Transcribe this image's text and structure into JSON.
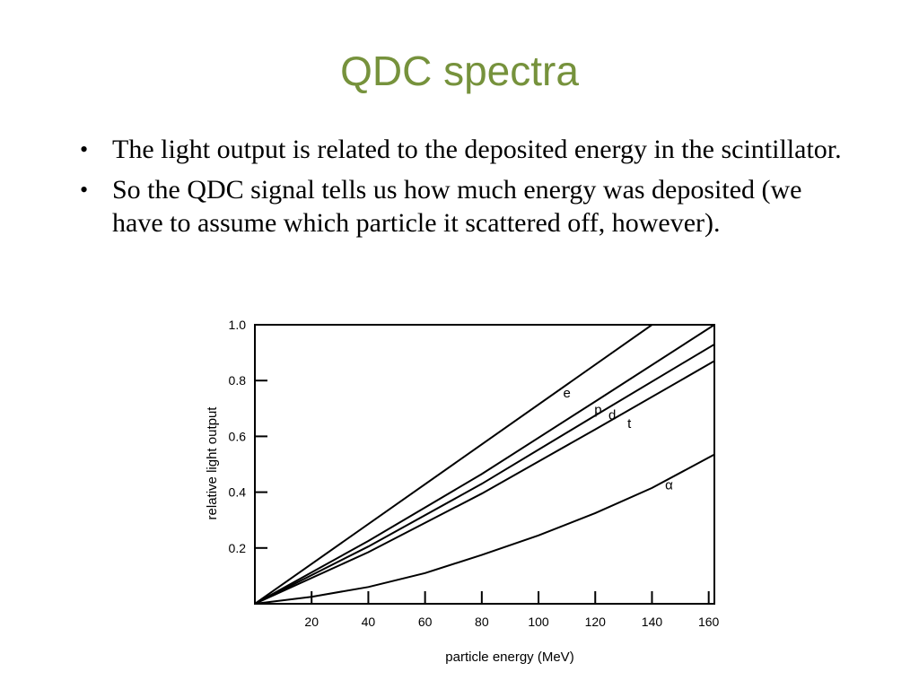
{
  "slide": {
    "title": "QDC spectra",
    "bullets": [
      "The light output is related to the deposited energy in the scintillator.",
      "So the QDC signal tells us how much energy was deposited (we have to assume which particle it scattered off, however)."
    ],
    "bullet_symbol": "•"
  },
  "colors": {
    "title": "#76923c",
    "text": "#000000"
  },
  "chart_data": {
    "type": "line",
    "xlabel": "particle energy (MeV)",
    "ylabel": "relative light output",
    "xlim": [
      0,
      162
    ],
    "ylim": [
      0,
      1.0
    ],
    "xticks": [
      20,
      40,
      60,
      80,
      100,
      120,
      140,
      160
    ],
    "yticks": [
      0.2,
      0.4,
      0.6,
      0.8,
      1.0
    ],
    "ytick_labels": [
      "0.2",
      "0.4",
      "0.6",
      "0.8",
      "1.0"
    ],
    "grid": false,
    "series": [
      {
        "name": "e",
        "x": [
          0,
          140
        ],
        "y": [
          0,
          1.0
        ]
      },
      {
        "name": "p",
        "x": [
          0,
          40,
          80,
          120,
          162
        ],
        "y": [
          0,
          0.225,
          0.465,
          0.725,
          1.0
        ]
      },
      {
        "name": "d",
        "x": [
          0,
          40,
          80,
          120,
          162
        ],
        "y": [
          0,
          0.205,
          0.43,
          0.675,
          0.93
        ]
      },
      {
        "name": "t",
        "x": [
          0,
          40,
          80,
          120,
          162
        ],
        "y": [
          0,
          0.185,
          0.395,
          0.625,
          0.87
        ]
      },
      {
        "name": "α",
        "x": [
          0,
          20,
          40,
          60,
          80,
          100,
          120,
          140,
          162
        ],
        "y": [
          0,
          0.025,
          0.06,
          0.11,
          0.175,
          0.245,
          0.325,
          0.415,
          0.535
        ]
      }
    ],
    "annotations": [
      {
        "text": "e",
        "x": 110,
        "y": 0.74
      },
      {
        "text": "p",
        "x": 121,
        "y": 0.68
      },
      {
        "text": "d",
        "x": 126,
        "y": 0.66
      },
      {
        "text": "t",
        "x": 132,
        "y": 0.63
      },
      {
        "text": "α",
        "x": 146,
        "y": 0.41
      }
    ]
  }
}
